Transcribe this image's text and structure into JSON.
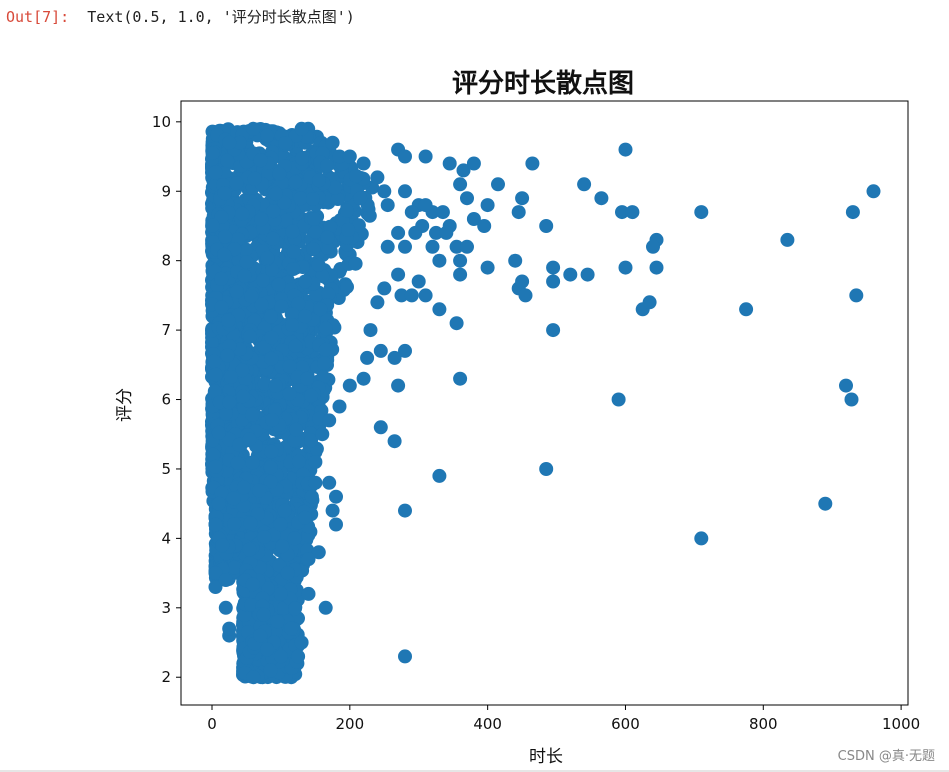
{
  "cell": {
    "prompt": "Out[7]:",
    "text": "Text(0.5, 1.0, '评分时长散点图')"
  },
  "watermark": "CSDN @真·无题",
  "chart_data": {
    "type": "scatter",
    "title": "评分时长散点图",
    "xlabel": "时长",
    "ylabel": "评分",
    "xlim": [
      -45,
      1010
    ],
    "ylim": [
      1.6,
      10.3
    ],
    "xticks": [
      "0",
      "200",
      "400",
      "600",
      "800",
      "1000"
    ],
    "yticks": [
      "2",
      "3",
      "4",
      "5",
      "6",
      "7",
      "8",
      "9",
      "10"
    ],
    "color": "#1f77b4",
    "grid": false,
    "dense_cluster_note": "Thousands of overlapping points fill roughly x 0–260, y 2–10",
    "points": [
      [
        600,
        9.6
      ],
      [
        270,
        9.6
      ],
      [
        280,
        9.5
      ],
      [
        310,
        9.5
      ],
      [
        345,
        9.4
      ],
      [
        365,
        9.3
      ],
      [
        380,
        9.4
      ],
      [
        360,
        9.1
      ],
      [
        465,
        9.4
      ],
      [
        415,
        9.1
      ],
      [
        450,
        8.9
      ],
      [
        370,
        8.9
      ],
      [
        280,
        9.0
      ],
      [
        300,
        8.8
      ],
      [
        320,
        8.7
      ],
      [
        310,
        8.8
      ],
      [
        335,
        8.7
      ],
      [
        290,
        8.7
      ],
      [
        380,
        8.6
      ],
      [
        345,
        8.5
      ],
      [
        395,
        8.5
      ],
      [
        400,
        8.8
      ],
      [
        445,
        8.7
      ],
      [
        485,
        8.5
      ],
      [
        540,
        9.1
      ],
      [
        565,
        8.9
      ],
      [
        595,
        8.7
      ],
      [
        610,
        8.7
      ],
      [
        710,
        8.7
      ],
      [
        930,
        8.7
      ],
      [
        960,
        9.0
      ],
      [
        835,
        8.3
      ],
      [
        645,
        8.3
      ],
      [
        640,
        8.2
      ],
      [
        600,
        7.9
      ],
      [
        645,
        7.9
      ],
      [
        495,
        7.9
      ],
      [
        520,
        7.8
      ],
      [
        545,
        7.8
      ],
      [
        440,
        8.0
      ],
      [
        400,
        7.9
      ],
      [
        360,
        8.0
      ],
      [
        355,
        8.2
      ],
      [
        370,
        8.2
      ],
      [
        360,
        7.8
      ],
      [
        320,
        8.2
      ],
      [
        330,
        8.0
      ],
      [
        325,
        8.4
      ],
      [
        340,
        8.4
      ],
      [
        305,
        8.5
      ],
      [
        295,
        8.4
      ],
      [
        270,
        8.4
      ],
      [
        280,
        8.2
      ],
      [
        270,
        7.8
      ],
      [
        300,
        7.7
      ],
      [
        310,
        7.5
      ],
      [
        330,
        7.3
      ],
      [
        275,
        7.5
      ],
      [
        290,
        7.5
      ],
      [
        355,
        7.1
      ],
      [
        445,
        7.6
      ],
      [
        455,
        7.5
      ],
      [
        450,
        7.7
      ],
      [
        495,
        7.7
      ],
      [
        495,
        7.0
      ],
      [
        625,
        7.3
      ],
      [
        635,
        7.4
      ],
      [
        775,
        7.3
      ],
      [
        935,
        7.5
      ],
      [
        920,
        6.2
      ],
      [
        928,
        6.0
      ],
      [
        590,
        6.0
      ],
      [
        360,
        6.3
      ],
      [
        280,
        6.7
      ],
      [
        265,
        6.6
      ],
      [
        270,
        6.2
      ],
      [
        265,
        5.4
      ],
      [
        245,
        5.6
      ],
      [
        330,
        4.9
      ],
      [
        485,
        5.0
      ],
      [
        280,
        4.4
      ],
      [
        890,
        4.5
      ],
      [
        710,
        4.0
      ],
      [
        280,
        2.3
      ],
      [
        165,
        3.0
      ],
      [
        180,
        4.2
      ],
      [
        175,
        4.4
      ],
      [
        180,
        4.6
      ],
      [
        170,
        4.8
      ],
      [
        155,
        3.8
      ],
      [
        140,
        3.7
      ],
      [
        140,
        3.2
      ],
      [
        130,
        2.5
      ],
      [
        125,
        2.3
      ],
      [
        60,
        2.0
      ],
      [
        85,
        2.1
      ],
      [
        100,
        2.3
      ],
      [
        70,
        2.6
      ],
      [
        90,
        2.5
      ],
      [
        25,
        2.6
      ],
      [
        20,
        3.0
      ],
      [
        5,
        3.5
      ],
      [
        5,
        3.3
      ],
      [
        20,
        3.4
      ],
      [
        25,
        2.7
      ],
      [
        10,
        4.0
      ],
      [
        5,
        4.2
      ],
      [
        10,
        4.5
      ],
      [
        15,
        3.9
      ],
      [
        60,
        9.9
      ],
      [
        130,
        9.9
      ],
      [
        80,
        9.8
      ],
      [
        40,
        9.7
      ],
      [
        25,
        9.7
      ],
      [
        175,
        9.7
      ],
      [
        185,
        9.5
      ],
      [
        200,
        9.5
      ],
      [
        220,
        9.4
      ],
      [
        240,
        9.2
      ],
      [
        250,
        9.0
      ],
      [
        255,
        8.8
      ],
      [
        255,
        8.2
      ],
      [
        250,
        7.6
      ],
      [
        240,
        7.4
      ],
      [
        230,
        7.0
      ],
      [
        245,
        6.7
      ],
      [
        225,
        6.6
      ],
      [
        220,
        6.3
      ],
      [
        200,
        6.2
      ],
      [
        185,
        5.9
      ],
      [
        170,
        5.7
      ],
      [
        160,
        5.5
      ],
      [
        150,
        5.1
      ],
      [
        150,
        4.8
      ],
      [
        145,
        4.6
      ],
      [
        135,
        4.3
      ],
      [
        120,
        4.0
      ],
      [
        110,
        3.5
      ],
      [
        100,
        3.2
      ],
      [
        95,
        2.8
      ],
      [
        80,
        2.4
      ],
      [
        75,
        2.9
      ]
    ]
  }
}
